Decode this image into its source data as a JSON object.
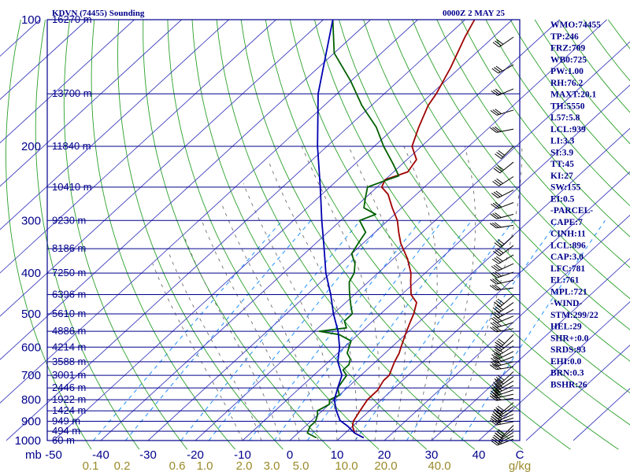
{
  "chart_data": {
    "type": "line",
    "chart_kind": "skew-T log-P sounding diagram",
    "title": "KDVN (74455) Sounding",
    "time_label": "0000Z  2 MAY 25",
    "pressure_axis_unit": "mb",
    "pressure_ticks": [
      100,
      200,
      300,
      400,
      500,
      600,
      700,
      800,
      900,
      1000
    ],
    "pressure_range_mb": [
      1000,
      100
    ],
    "temperature_ticks": [
      -50,
      -40,
      -30,
      -20,
      -10,
      0,
      10,
      20,
      30,
      40
    ],
    "temperature_tick_labels": [
      "-50",
      "-40",
      "-30",
      "-20",
      "-10",
      "0",
      "10",
      "20",
      "30",
      "40"
    ],
    "temperature_unit": "C",
    "mixing_ratio_tick_labels": [
      "0.1",
      "0.2",
      "0.6",
      "1.0",
      "2.0",
      "3.0",
      "5.0",
      "10.0",
      "20.0",
      "40.0"
    ],
    "mixing_ratio_unit": "g/kg",
    "mixing_ratio_values": [
      0.1,
      0.2,
      0.6,
      1.0,
      2.0,
      3.0,
      5.0,
      10.0,
      20.0,
      40.0
    ],
    "height_labels": [
      {
        "p": 100,
        "text": "16270 m"
      },
      {
        "p": 150,
        "text": "13700 m"
      },
      {
        "p": 200,
        "text": "11840 m"
      },
      {
        "p": 250,
        "text": "10410 m"
      },
      {
        "p": 300,
        "text": "9230 m"
      },
      {
        "p": 350,
        "text": "8186 m"
      },
      {
        "p": 400,
        "text": "7250 m"
      },
      {
        "p": 450,
        "text": "6396 m"
      },
      {
        "p": 500,
        "text": "5610 m"
      },
      {
        "p": 550,
        "text": "4886 m"
      },
      {
        "p": 600,
        "text": "4214 m"
      },
      {
        "p": 650,
        "text": "3588 m"
      },
      {
        "p": 700,
        "text": "3001 m"
      },
      {
        "p": 750,
        "text": "2446 m"
      },
      {
        "p": 800,
        "text": "1922 m"
      },
      {
        "p": 850,
        "text": "1424 m"
      },
      {
        "p": 900,
        "text": "949 m"
      },
      {
        "p": 950,
        "text": "494 m"
      },
      {
        "p": 1000,
        "text": "60 m"
      }
    ],
    "series": [
      {
        "color": "#a00000",
        "role": "temperature",
        "points": [
          [
            985,
            15
          ],
          [
            960,
            12
          ],
          [
            925,
            10
          ],
          [
            900,
            9
          ],
          [
            850,
            8
          ],
          [
            800,
            7
          ],
          [
            760,
            7
          ],
          [
            720,
            6
          ],
          [
            700,
            6
          ],
          [
            650,
            4
          ],
          [
            620,
            3
          ],
          [
            600,
            2
          ],
          [
            560,
            0
          ],
          [
            520,
            -2
          ],
          [
            500,
            -3
          ],
          [
            470,
            -5
          ],
          [
            450,
            -8
          ],
          [
            420,
            -11
          ],
          [
            400,
            -13
          ],
          [
            370,
            -17
          ],
          [
            340,
            -22
          ],
          [
            320,
            -25
          ],
          [
            300,
            -28
          ],
          [
            280,
            -32
          ],
          [
            260,
            -36
          ],
          [
            250,
            -39
          ],
          [
            240,
            -40
          ],
          [
            230,
            -37
          ],
          [
            215,
            -38
          ],
          [
            200,
            -42
          ],
          [
            180,
            -45
          ],
          [
            160,
            -48
          ],
          [
            150,
            -49
          ],
          [
            130,
            -52
          ],
          [
            110,
            -56
          ],
          [
            100,
            -58
          ]
        ]
      },
      {
        "color": "#006000",
        "role": "dewpoint",
        "points": [
          [
            985,
            5
          ],
          [
            960,
            2
          ],
          [
            925,
            1
          ],
          [
            900,
            1
          ],
          [
            870,
            0
          ],
          [
            850,
            -1
          ],
          [
            820,
            0
          ],
          [
            800,
            -1
          ],
          [
            780,
            0
          ],
          [
            750,
            -2
          ],
          [
            700,
            -3
          ],
          [
            680,
            -5
          ],
          [
            660,
            -5
          ],
          [
            640,
            -6
          ],
          [
            620,
            -8
          ],
          [
            600,
            -9
          ],
          [
            580,
            -10
          ],
          [
            560,
            -14
          ],
          [
            550,
            -19
          ],
          [
            540,
            -14
          ],
          [
            520,
            -16
          ],
          [
            500,
            -16
          ],
          [
            480,
            -18
          ],
          [
            460,
            -20
          ],
          [
            440,
            -22
          ],
          [
            420,
            -24
          ],
          [
            400,
            -25
          ],
          [
            380,
            -27
          ],
          [
            360,
            -30
          ],
          [
            340,
            -31
          ],
          [
            320,
            -32
          ],
          [
            300,
            -36
          ],
          [
            290,
            -34
          ],
          [
            280,
            -38
          ],
          [
            265,
            -40
          ],
          [
            250,
            -42
          ],
          [
            242,
            -40
          ],
          [
            235,
            -38
          ],
          [
            220,
            -42
          ],
          [
            200,
            -48
          ],
          [
            180,
            -54
          ],
          [
            160,
            -62
          ],
          [
            140,
            -70
          ],
          [
            120,
            -80
          ],
          [
            100,
            -88
          ]
        ]
      },
      {
        "color": "#0000b0",
        "role": "parcel",
        "points": [
          [
            985,
            15
          ],
          [
            960,
            12
          ],
          [
            925,
            9
          ],
          [
            896,
            6
          ],
          [
            850,
            3
          ],
          [
            800,
            0
          ],
          [
            750,
            -2
          ],
          [
            700,
            -4
          ],
          [
            650,
            -8
          ],
          [
            600,
            -11
          ],
          [
            550,
            -15
          ],
          [
            500,
            -20
          ],
          [
            450,
            -25
          ],
          [
            400,
            -31
          ],
          [
            350,
            -37
          ],
          [
            300,
            -44
          ],
          [
            250,
            -52
          ],
          [
            200,
            -62
          ],
          [
            150,
            -74
          ],
          [
            100,
            -88
          ]
        ]
      }
    ],
    "wind_barbs_present": true
  },
  "indices": [
    "WMO:74455",
    "TP:246",
    "FRZ:709",
    "WB0:725",
    "PW:1.00",
    "RH:76.2",
    "MAXT:20.1",
    "TH:5550",
    "L57:5.8",
    "LCL:939",
    "LI:3.3",
    "SI:3.9",
    "TT:45",
    "KI:27",
    "SW:155",
    "EI:0.5",
    "-PARCEL-",
    "CAPE:7",
    "CINH:11",
    "LCL:896",
    "CAP:3.0",
    "LFC:781",
    "EL:761",
    "MPL:721",
    "-WIND-",
    "STM:299/22",
    "HEL:29",
    "SHR+:0.0",
    "SRDS:93",
    "EHI:0.0",
    "BRN:0.3",
    "BSHR:26"
  ],
  "colors": {
    "frame": "#00008b",
    "isobar": "#00008b",
    "isotherm": "#4040c0",
    "dry_adiabat": "#2aa02a",
    "moist_adiabat": "#707070",
    "mixing_ratio": "#1e90ff",
    "mixing_ratio_label": "#9a8a2a"
  }
}
